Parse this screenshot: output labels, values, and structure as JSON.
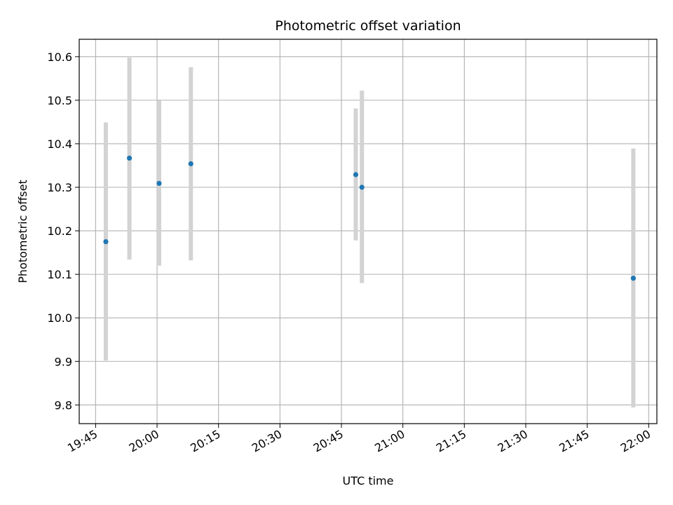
{
  "chart_data": {
    "type": "scatter",
    "title": "Photometric offset variation",
    "xlabel": "UTC time",
    "ylabel": "Photometric offset",
    "x_ticks": [
      "19:45",
      "20:00",
      "20:15",
      "20:30",
      "20:45",
      "21:00",
      "21:15",
      "21:30",
      "21:45",
      "22:00"
    ],
    "y_ticks": [
      "9.8",
      "9.9",
      "10.0",
      "10.1",
      "10.2",
      "10.3",
      "10.4",
      "10.5",
      "10.6"
    ],
    "xlim": [
      "19:41",
      "22:02"
    ],
    "ylim": [
      9.757,
      10.64
    ],
    "grid": true,
    "colors": {
      "point": "#1f77b4",
      "errorbar": "#d3d3d3",
      "grid": "#b0b0b0"
    },
    "series": [
      {
        "points": [
          {
            "x": "19:47:30",
            "y": 10.175,
            "ylow": 9.902,
            "yhigh": 10.449
          },
          {
            "x": "19:53:15",
            "y": 10.367,
            "ylow": 10.134,
            "yhigh": 10.598
          },
          {
            "x": "20:00:30",
            "y": 10.309,
            "ylow": 10.12,
            "yhigh": 10.499
          },
          {
            "x": "20:08:15",
            "y": 10.354,
            "ylow": 10.132,
            "yhigh": 10.576
          },
          {
            "x": "20:48:30",
            "y": 10.329,
            "ylow": 10.178,
            "yhigh": 10.481
          },
          {
            "x": "20:50:00",
            "y": 10.3,
            "ylow": 10.08,
            "yhigh": 10.522
          },
          {
            "x": "21:56:15",
            "y": 10.091,
            "ylow": 9.794,
            "yhigh": 10.389
          }
        ]
      }
    ]
  }
}
